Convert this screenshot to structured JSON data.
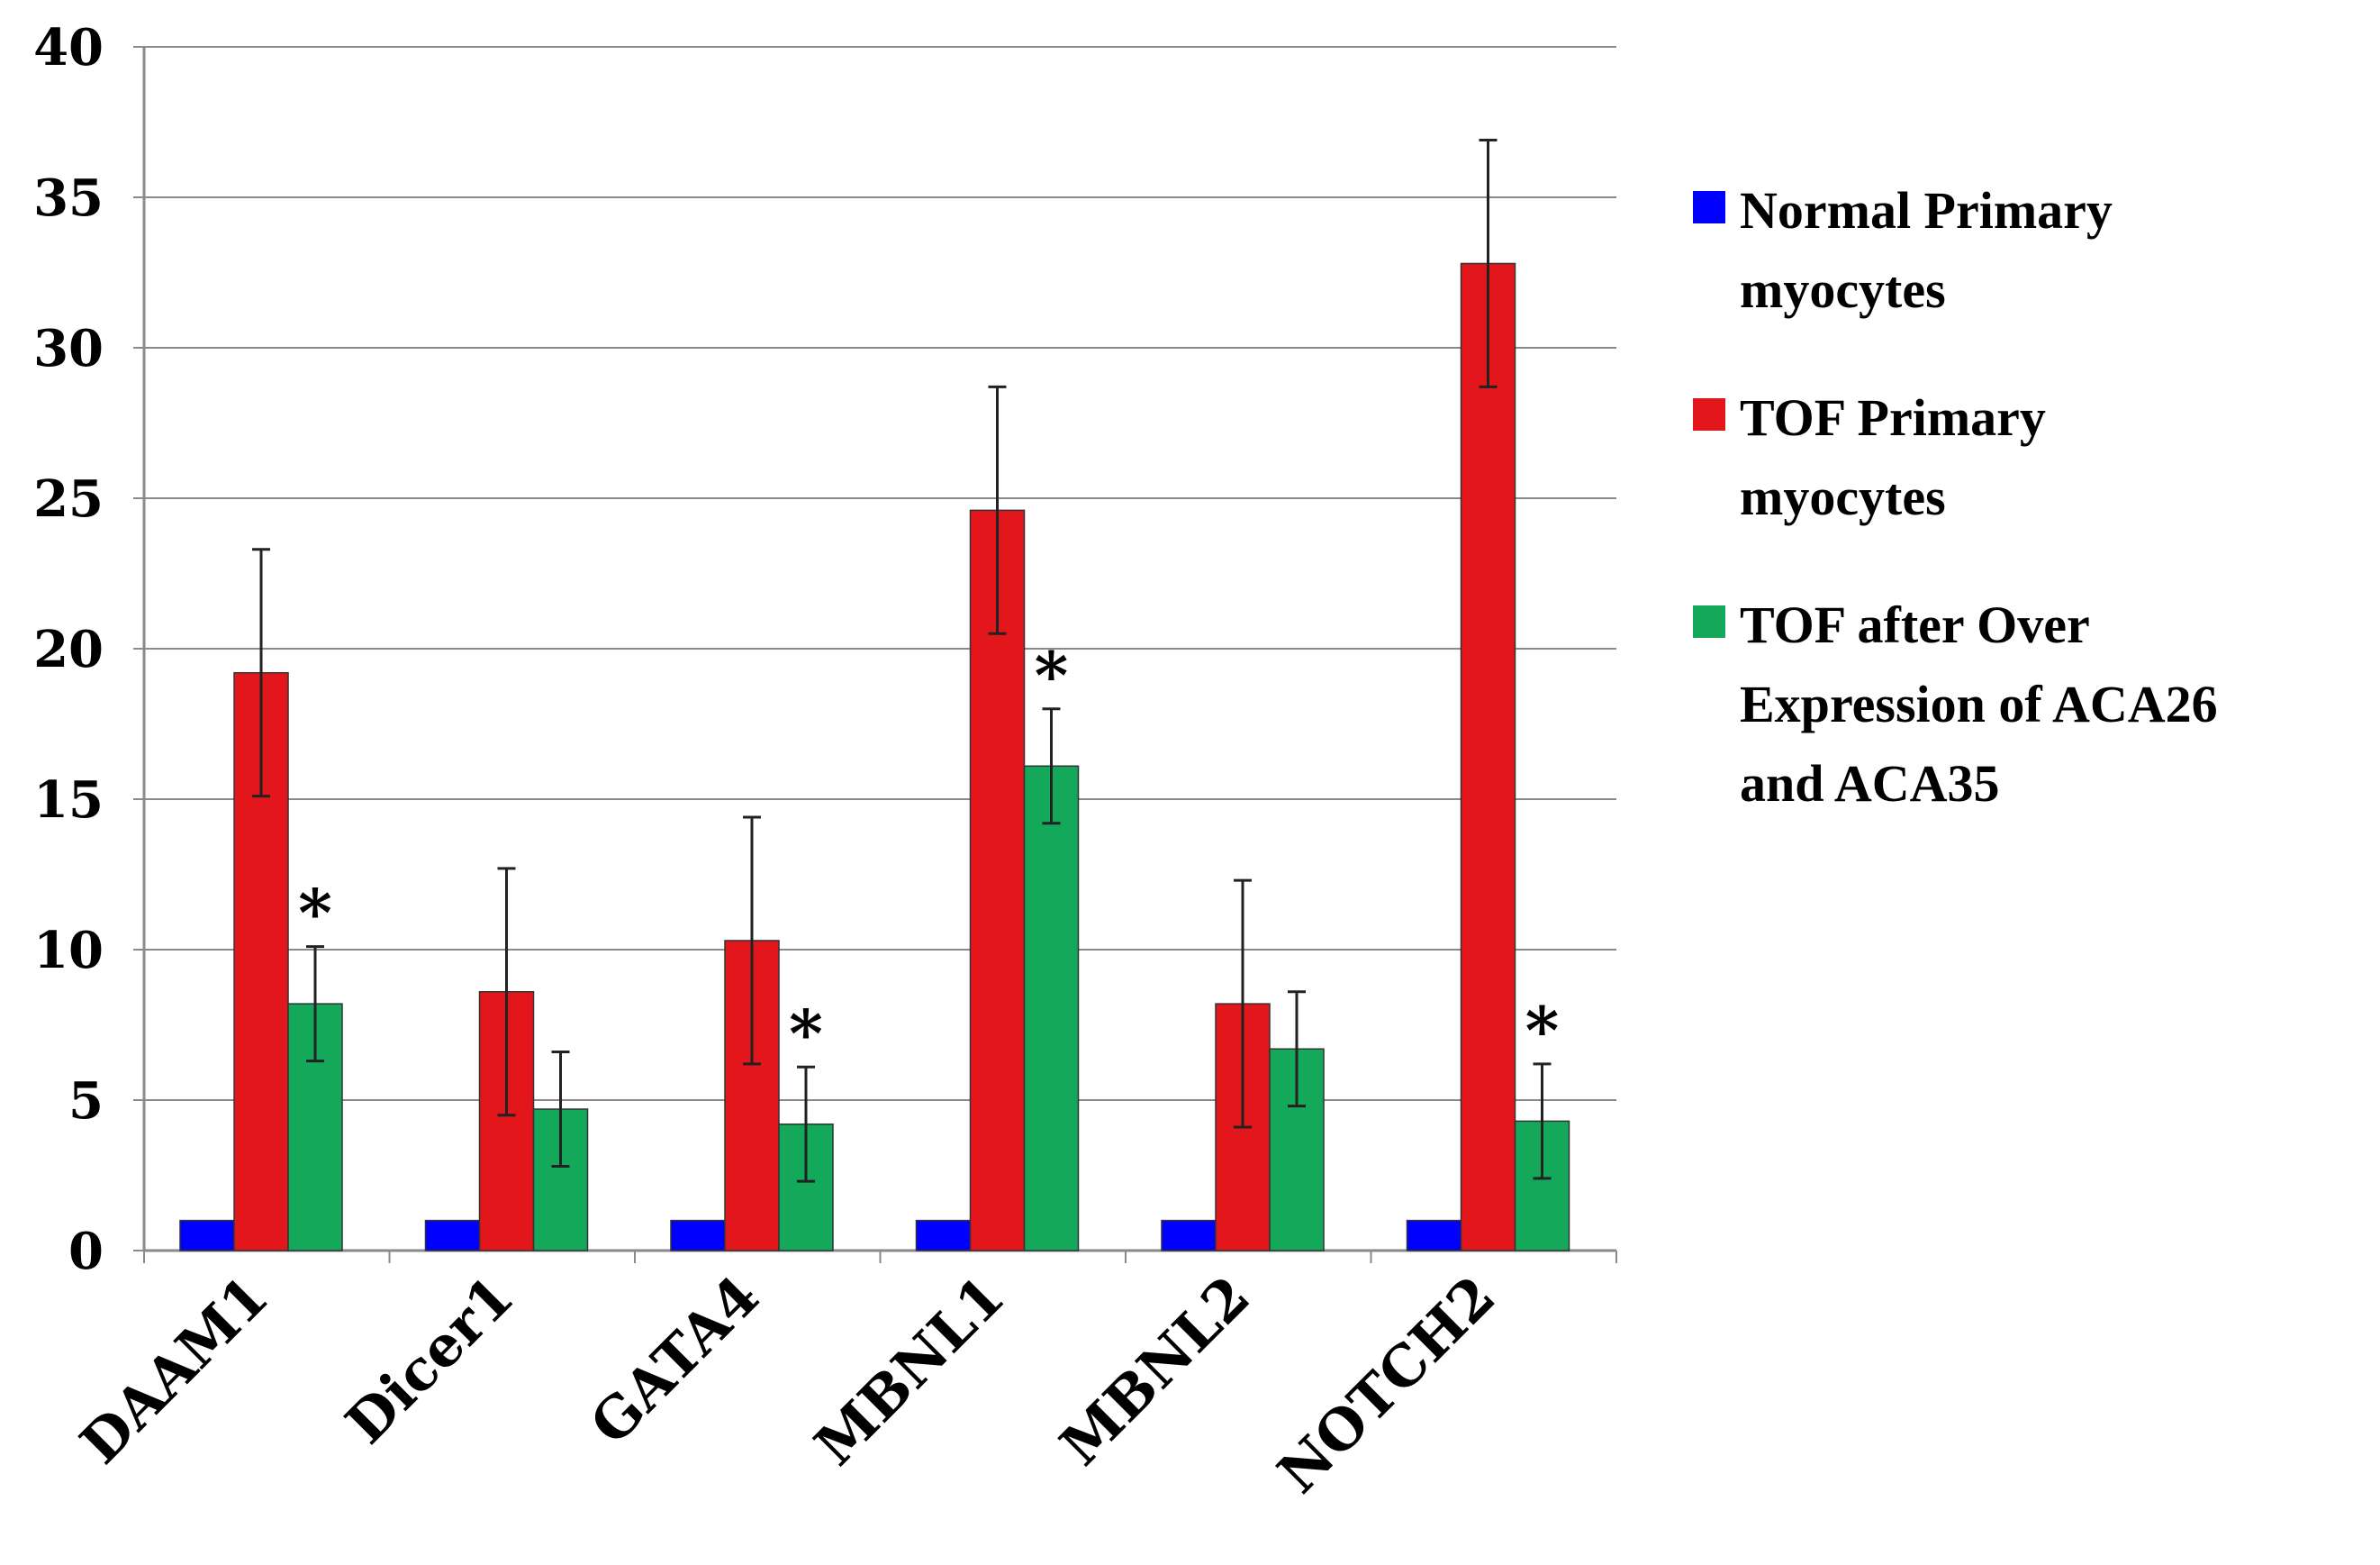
{
  "chart_data": {
    "type": "bar",
    "title": "",
    "xlabel": "",
    "ylabel": "",
    "ylim": [
      0,
      40
    ],
    "yticks": [
      0,
      5,
      10,
      15,
      20,
      25,
      30,
      35,
      40
    ],
    "grid": true,
    "legend_position": "right",
    "categories": [
      "DAAM1",
      "Dicer1",
      "GATA4",
      "MBNL1",
      "MBNL2",
      "NOTCH2"
    ],
    "series": [
      {
        "name": "Normal Primary myocytes",
        "color": "#0000ff",
        "values": [
          1,
          1,
          1,
          1,
          1,
          1
        ],
        "errors": [
          0,
          0,
          0,
          0,
          0,
          0
        ]
      },
      {
        "name": "TOF Primary myocytes",
        "color": "#e3161c",
        "values": [
          19.2,
          8.6,
          10.3,
          24.6,
          8.2,
          32.8
        ],
        "errors": [
          4.1,
          4.1,
          4.1,
          4.1,
          4.1,
          4.1
        ]
      },
      {
        "name": "TOF after Over Expression of ACA26 and ACA35",
        "color": "#14a85a",
        "values": [
          8.2,
          4.7,
          4.2,
          16.1,
          6.7,
          4.3
        ],
        "errors": [
          1.9,
          1.9,
          1.9,
          1.9,
          1.9,
          1.9
        ]
      }
    ],
    "annotations": [
      {
        "text": "*",
        "category": "DAAM1",
        "series": 2
      },
      {
        "text": "*",
        "category": "GATA4",
        "series": 2
      },
      {
        "text": "*",
        "category": "MBNL1",
        "series": 2
      },
      {
        "text": "*",
        "category": "NOTCH2",
        "series": 2
      }
    ]
  },
  "legend": {
    "items": [
      {
        "lines": [
          "Normal Primary",
          "myocytes"
        ],
        "color": "#0000ff"
      },
      {
        "lines": [
          "TOF Primary",
          "myocytes"
        ],
        "color": "#e3161c"
      },
      {
        "lines": [
          "TOF after Over",
          "Expression of ACA26",
          "and ACA35"
        ],
        "color": "#14a85a"
      }
    ]
  }
}
